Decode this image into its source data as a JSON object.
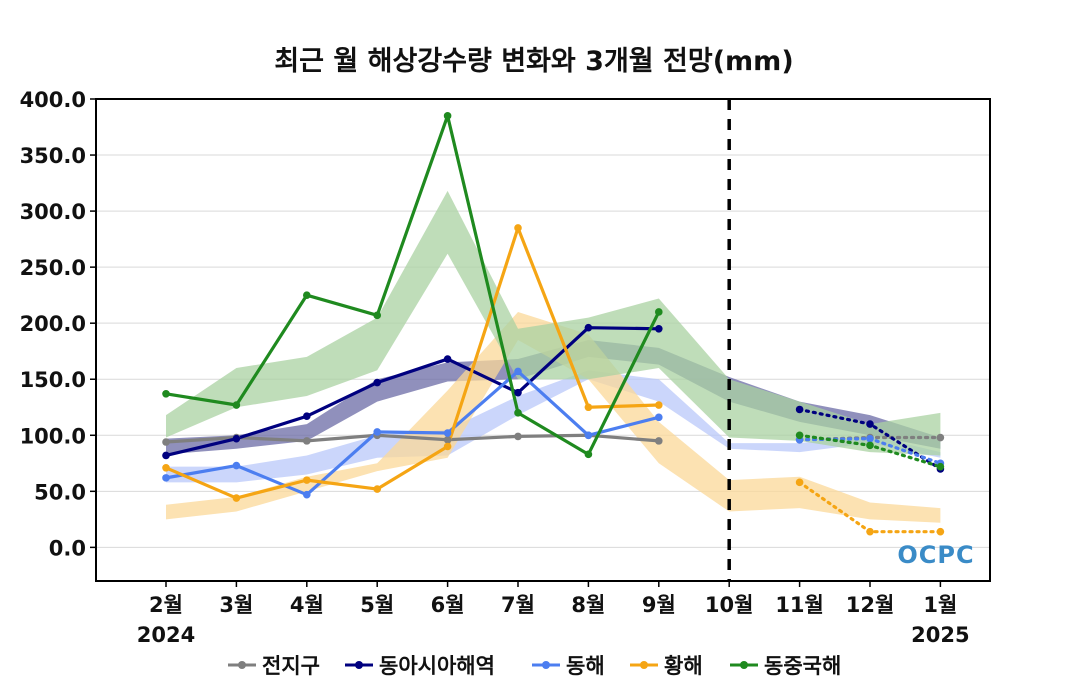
{
  "chart_data": {
    "type": "line",
    "title": "최근 월 해상강수량 변화와 3개월 전망(mm)",
    "categories": [
      "2월",
      "3월",
      "4월",
      "5월",
      "6월",
      "7월",
      "8월",
      "9월",
      "10월",
      "11월",
      "12월",
      "1월"
    ],
    "year_labels": [
      {
        "category": "2월",
        "label": "2024"
      },
      {
        "category": "1월",
        "label": "2025"
      }
    ],
    "y_ticks": [
      "0.0",
      "50.0",
      "100.0",
      "150.0",
      "200.0",
      "250.0",
      "300.0",
      "350.0",
      "400.0"
    ],
    "ylim": [
      -30,
      400
    ],
    "forecast_divider_after": "9월",
    "grid": true,
    "legend_position": "bottom",
    "watermark": "OCPC",
    "series": [
      {
        "name": "전지구",
        "color": "#7f7f7f",
        "observed": [
          94,
          98,
          95,
          100,
          96,
          99,
          100,
          95,
          null,
          null,
          null,
          null
        ],
        "forecast": [
          null,
          null,
          null,
          null,
          null,
          null,
          null,
          null,
          null,
          96,
          98,
          98
        ],
        "band_lower": [
          null,
          null,
          null,
          null,
          null,
          null,
          null,
          null,
          null,
          null,
          null,
          null
        ],
        "band_upper": [
          null,
          null,
          null,
          null,
          null,
          null,
          null,
          null,
          null,
          null,
          null,
          null
        ]
      },
      {
        "name": "동아시아해역",
        "color": "#00007f",
        "observed": [
          82,
          97,
          117,
          147,
          168,
          138,
          196,
          195,
          null,
          null,
          null,
          null
        ],
        "forecast": [
          null,
          null,
          null,
          null,
          null,
          null,
          null,
          null,
          null,
          123,
          110,
          70
        ],
        "band_lower": [
          83,
          88,
          95,
          130,
          148,
          150,
          170,
          163,
          130,
          112,
          100,
          88
        ],
        "band_upper": [
          97,
          100,
          110,
          150,
          165,
          168,
          185,
          178,
          152,
          130,
          118,
          98
        ],
        "band_color": "#6b6ba6"
      },
      {
        "name": "동해",
        "color": "#4c7ef0",
        "observed": [
          62,
          73,
          47,
          103,
          102,
          157,
          100,
          116,
          null,
          null,
          null,
          null
        ],
        "forecast": [
          null,
          null,
          null,
          null,
          null,
          null,
          null,
          null,
          null,
          96,
          97,
          75
        ],
        "band_lower": [
          58,
          58,
          65,
          80,
          82,
          118,
          150,
          130,
          88,
          85,
          93,
          80
        ],
        "band_upper": [
          72,
          72,
          82,
          100,
          105,
          135,
          158,
          150,
          93,
          93,
          100,
          85
        ],
        "band_color": "#b9c8fa"
      },
      {
        "name": "황해",
        "color": "#f5a514",
        "observed": [
          71,
          44,
          60,
          52,
          90,
          285,
          125,
          127,
          null,
          null,
          null,
          null
        ],
        "forecast": [
          null,
          null,
          null,
          null,
          null,
          null,
          null,
          null,
          null,
          58,
          14,
          14
        ],
        "band_lower": [
          25,
          32,
          50,
          68,
          80,
          185,
          150,
          75,
          32,
          35,
          25,
          22
        ],
        "band_upper": [
          38,
          45,
          63,
          75,
          140,
          210,
          190,
          112,
          60,
          63,
          40,
          35
        ],
        "band_color": "#fbd898"
      },
      {
        "name": "동중국해",
        "color": "#1f8a1f",
        "observed": [
          137,
          127,
          225,
          207,
          385,
          120,
          83,
          210,
          null,
          null,
          null,
          null
        ],
        "forecast": [
          null,
          null,
          null,
          null,
          null,
          null,
          null,
          null,
          null,
          100,
          91,
          72
        ],
        "band_lower": [
          98,
          125,
          135,
          158,
          262,
          150,
          150,
          160,
          98,
          95,
          85,
          82
        ],
        "band_upper": [
          118,
          160,
          170,
          205,
          318,
          195,
          205,
          222,
          150,
          130,
          110,
          120
        ],
        "band_color": "#a9d2a1"
      }
    ]
  }
}
